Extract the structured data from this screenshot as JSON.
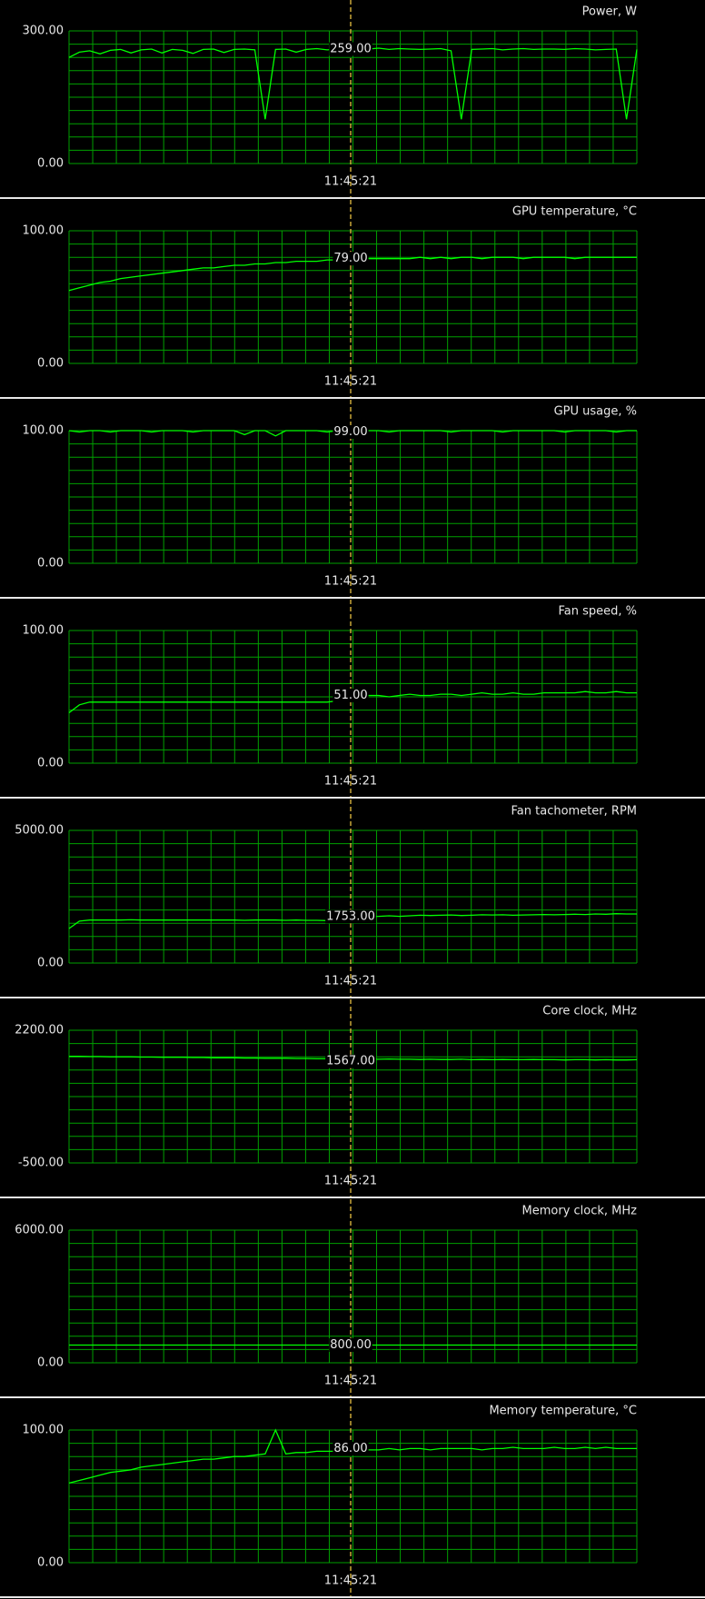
{
  "chart_data": [
    {
      "type": "line",
      "title": "Power, W",
      "color": "#00ff00",
      "grid": true,
      "ylim": [
        0,
        300
      ],
      "yticks": [
        {
          "value": 0,
          "label": "0.00"
        },
        {
          "value": 300,
          "label": "300.00"
        }
      ],
      "cursor_time": "11:45:21",
      "cursor_value": {
        "value": 259,
        "label": "259.00"
      },
      "values": [
        240,
        252,
        255,
        248,
        256,
        258,
        250,
        257,
        259,
        250,
        258,
        256,
        249,
        258,
        259,
        251,
        258,
        259,
        257,
        100,
        258,
        259,
        252,
        258,
        260,
        257,
        259,
        252,
        258,
        259,
        261,
        258,
        260,
        259,
        258,
        259,
        260,
        255,
        100,
        258,
        259,
        260,
        257,
        259,
        260,
        258,
        259,
        259,
        258,
        260,
        259,
        257,
        258,
        259,
        100,
        258
      ]
    },
    {
      "type": "line",
      "title": "GPU temperature, °C",
      "color": "#00ff00",
      "grid": true,
      "ylim": [
        0,
        100
      ],
      "yticks": [
        {
          "value": 0,
          "label": "0.00"
        },
        {
          "value": 100,
          "label": "100.00"
        }
      ],
      "cursor_time": "11:45:21",
      "cursor_value": {
        "value": 79,
        "label": "79.00"
      },
      "values": [
        55,
        57,
        59,
        61,
        62,
        64,
        65,
        66,
        67,
        68,
        69,
        70,
        71,
        72,
        72,
        73,
        74,
        74,
        75,
        75,
        76,
        76,
        77,
        77,
        77,
        78,
        78,
        78,
        79,
        79,
        79,
        79,
        79,
        79,
        80,
        79,
        80,
        79,
        80,
        80,
        79,
        80,
        80,
        80,
        79,
        80,
        80,
        80,
        80,
        79,
        80,
        80,
        80,
        80,
        80,
        80
      ]
    },
    {
      "type": "line",
      "title": "GPU usage, %",
      "color": "#00ff00",
      "grid": true,
      "ylim": [
        0,
        100
      ],
      "yticks": [
        {
          "value": 0,
          "label": "0.00"
        },
        {
          "value": 100,
          "label": "100.00"
        }
      ],
      "cursor_time": "11:45:21",
      "cursor_value": {
        "value": 99,
        "label": "99.00"
      },
      "values": [
        100,
        99,
        100,
        100,
        99,
        100,
        100,
        100,
        99,
        100,
        100,
        100,
        99,
        100,
        100,
        100,
        100,
        97,
        100,
        100,
        96,
        100,
        100,
        100,
        100,
        99,
        100,
        100,
        100,
        100,
        100,
        99,
        100,
        100,
        100,
        100,
        100,
        99,
        100,
        100,
        100,
        100,
        99,
        100,
        100,
        100,
        100,
        100,
        99,
        100,
        100,
        100,
        100,
        99,
        100,
        100
      ]
    },
    {
      "type": "line",
      "title": "Fan speed, %",
      "color": "#00ff00",
      "grid": true,
      "ylim": [
        0,
        100
      ],
      "yticks": [
        {
          "value": 0,
          "label": "0.00"
        },
        {
          "value": 100,
          "label": "100.00"
        }
      ],
      "cursor_time": "11:45:21",
      "cursor_value": {
        "value": 51,
        "label": "51.00"
      },
      "values": [
        38,
        44,
        46,
        46,
        46,
        46,
        46,
        46,
        46,
        46,
        46,
        46,
        46,
        46,
        46,
        46,
        46,
        46,
        46,
        46,
        46,
        46,
        46,
        46,
        46,
        46,
        47,
        51,
        51,
        51,
        51,
        50,
        51,
        52,
        51,
        51,
        52,
        52,
        51,
        52,
        53,
        52,
        52,
        53,
        52,
        52,
        53,
        53,
        53,
        53,
        54,
        53,
        53,
        54,
        53,
        53
      ]
    },
    {
      "type": "line",
      "title": "Fan tachometer, RPM",
      "color": "#00ff00",
      "grid": true,
      "ylim": [
        0,
        5000
      ],
      "yticks": [
        {
          "value": 0,
          "label": "0.00"
        },
        {
          "value": 5000,
          "label": "5000.00"
        }
      ],
      "cursor_time": "11:45:21",
      "cursor_value": {
        "value": 1753,
        "label": "1753.00"
      },
      "values": [
        1300,
        1580,
        1620,
        1620,
        1620,
        1620,
        1630,
        1620,
        1620,
        1620,
        1620,
        1620,
        1620,
        1620,
        1620,
        1620,
        1620,
        1610,
        1620,
        1620,
        1620,
        1610,
        1620,
        1610,
        1610,
        1600,
        1610,
        1760,
        1760,
        1750,
        1760,
        1780,
        1760,
        1780,
        1800,
        1790,
        1800,
        1810,
        1790,
        1800,
        1820,
        1810,
        1820,
        1800,
        1810,
        1820,
        1830,
        1820,
        1830,
        1840,
        1830,
        1850,
        1840,
        1860,
        1850,
        1850
      ]
    },
    {
      "type": "line",
      "title": "Core clock, MHz",
      "color": "#00ff00",
      "grid": true,
      "ylim": [
        -500,
        2200
      ],
      "yticks": [
        {
          "value": -500,
          "label": "-500.00"
        },
        {
          "value": 2200,
          "label": "2200.00"
        }
      ],
      "cursor_time": "11:45:21",
      "cursor_value": {
        "value": 1567,
        "label": "1567.00"
      },
      "values": [
        1670,
        1670,
        1665,
        1665,
        1660,
        1660,
        1660,
        1655,
        1655,
        1650,
        1650,
        1650,
        1645,
        1645,
        1640,
        1640,
        1640,
        1635,
        1635,
        1630,
        1630,
        1630,
        1625,
        1625,
        1620,
        1620,
        1615,
        1620,
        1615,
        1610,
        1610,
        1615,
        1610,
        1610,
        1605,
        1610,
        1605,
        1605,
        1610,
        1600,
        1605,
        1600,
        1605,
        1600,
        1600,
        1605,
        1600,
        1600,
        1595,
        1600,
        1600,
        1595,
        1600,
        1595,
        1595,
        1600
      ]
    },
    {
      "type": "line",
      "title": "Memory clock, MHz",
      "color": "#00ff00",
      "grid": true,
      "ylim": [
        0,
        6000
      ],
      "yticks": [
        {
          "value": 0,
          "label": "0.00"
        },
        {
          "value": 6000,
          "label": "6000.00"
        }
      ],
      "cursor_time": "11:45:21",
      "cursor_value": {
        "value": 800,
        "label": "800.00"
      },
      "values": [
        800,
        800,
        800,
        800,
        800,
        800,
        800,
        800,
        800,
        800,
        800,
        800,
        800,
        800,
        800,
        800,
        800,
        800,
        800,
        800,
        800,
        800,
        800,
        800,
        800,
        800,
        800,
        800
      ]
    },
    {
      "type": "line",
      "title": "Memory temperature, °C",
      "color": "#00ff00",
      "grid": true,
      "ylim": [
        0,
        100
      ],
      "yticks": [
        {
          "value": 0,
          "label": "0.00"
        },
        {
          "value": 100,
          "label": "100.00"
        }
      ],
      "cursor_time": "11:45:21",
      "cursor_value": {
        "value": 86,
        "label": "86.00"
      },
      "values": [
        60,
        62,
        64,
        66,
        68,
        69,
        70,
        72,
        73,
        74,
        75,
        76,
        77,
        78,
        78,
        79,
        80,
        80,
        81,
        82,
        100,
        82,
        83,
        83,
        84,
        84,
        84,
        85,
        85,
        85,
        85,
        86,
        85,
        86,
        86,
        85,
        86,
        86,
        86,
        86,
        85,
        86,
        86,
        87,
        86,
        86,
        86,
        87,
        86,
        86,
        87,
        86,
        87,
        86,
        86,
        86
      ]
    }
  ]
}
